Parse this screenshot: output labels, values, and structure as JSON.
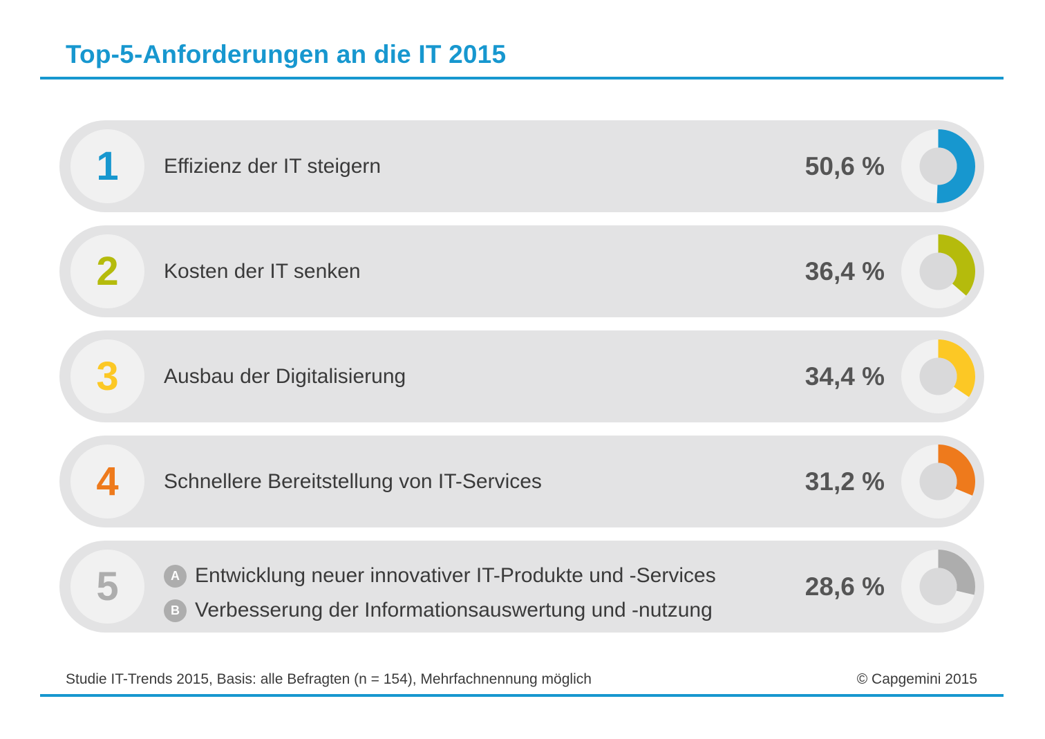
{
  "title": "Top-5-Anforderungen an die IT 2015",
  "colors": {
    "accent": "#1797cf",
    "row_bg": "#e3e3e4",
    "ring_bg": "#f1f1f1",
    "center": "#d9d9da"
  },
  "chart_data": {
    "type": "bar",
    "title": "Top-5-Anforderungen an die IT 2015",
    "items": [
      {
        "rank": "1",
        "label": "Effizienz der IT steigern",
        "value": 50.6,
        "value_label": "50,6 %",
        "color": "#1797cf"
      },
      {
        "rank": "2",
        "label": "Kosten der IT senken",
        "value": 36.4,
        "value_label": "36,4 %",
        "color": "#b5bb0c"
      },
      {
        "rank": "3",
        "label": "Ausbau der Digitalisierung",
        "value": 34.4,
        "value_label": "34,4 %",
        "color": "#fcc825"
      },
      {
        "rank": "4",
        "label": "Schnellere Bereitstellung von IT-Services",
        "value": 31.2,
        "value_label": "31,2 %",
        "color": "#ee7a1c"
      },
      {
        "rank": "5",
        "label": "",
        "value": 28.6,
        "value_label": "28,6 %",
        "color": "#adadad",
        "sub_items": [
          {
            "badge": "A",
            "text": "Entwicklung neuer innovativer IT-Produkte und -Services"
          },
          {
            "badge": "B",
            "text": "Verbesserung der Informationsauswertung und -nutzung"
          }
        ]
      }
    ]
  },
  "footer": {
    "source": "Studie IT-Trends 2015, Basis: alle Befragten (n = 154), Mehrfachnennung möglich",
    "copyright": "© Capgemini 2015"
  }
}
